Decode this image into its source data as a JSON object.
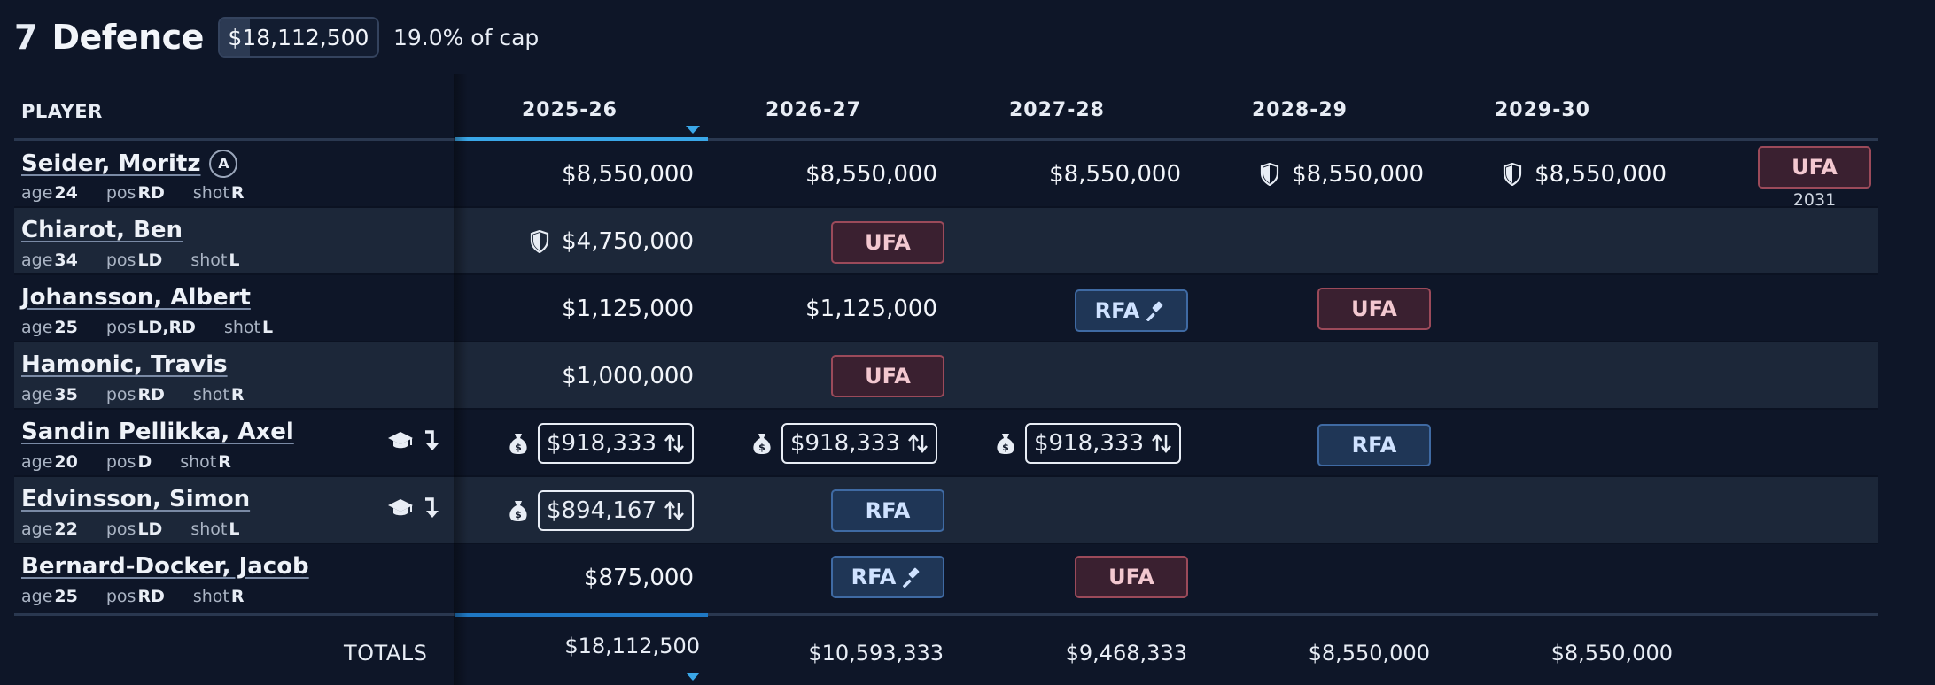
{
  "section": {
    "count": "7",
    "title": "Defence",
    "cap_hit": "$18,112,500",
    "cap_pct_text": "19.0% of cap",
    "cap_fill_fraction": 0.19
  },
  "columns": {
    "player": "PLAYER",
    "seasons": [
      "2025-26",
      "2026-27",
      "2027-28",
      "2028-29",
      "2029-30"
    ]
  },
  "meta_labels": {
    "age": "age",
    "pos": "pos",
    "shot": "shot"
  },
  "players": [
    {
      "name": "Seider, Moritz",
      "badge": "A",
      "age": "24",
      "pos": "RD",
      "shot": "R",
      "cells": [
        "$8,550,000",
        "$8,550,000",
        "$8,550,000",
        "$8,550,000",
        "$8,550,000"
      ],
      "tag": "UFA",
      "tag_year": "2031"
    },
    {
      "name": "Chiarot, Ben",
      "age": "34",
      "pos": "LD",
      "shot": "L",
      "cells": [
        "$4,750,000"
      ],
      "tag": "UFA"
    },
    {
      "name": "Johansson, Albert",
      "age": "25",
      "pos": "LD,RD",
      "shot": "L",
      "cells": [
        "$1,125,000",
        "$1,125,000"
      ],
      "tag1": "RFA",
      "tag2": "UFA"
    },
    {
      "name": "Hamonic, Travis",
      "age": "35",
      "pos": "RD",
      "shot": "R",
      "cells": [
        "$1,000,000"
      ],
      "tag": "UFA"
    },
    {
      "name": "Sandin Pellikka, Axel",
      "age": "20",
      "pos": "D",
      "shot": "R",
      "cells": [
        "$918,333",
        "$918,333",
        "$918,333"
      ],
      "tag": "RFA"
    },
    {
      "name": "Edvinsson, Simon",
      "age": "22",
      "pos": "LD",
      "shot": "L",
      "cells": [
        "$894,167"
      ],
      "tag": "RFA"
    },
    {
      "name": "Bernard-Docker, Jacob",
      "age": "25",
      "pos": "RD",
      "shot": "R",
      "cells": [
        "$875,000"
      ],
      "tag1": "RFA",
      "tag2": "UFA"
    }
  ],
  "totals": {
    "label": "TOTALS",
    "values": [
      "$18,112,500",
      "$10,593,333",
      "$9,468,333",
      "$8,550,000",
      "$8,550,000"
    ]
  },
  "colors": {
    "accent": "#3aa7e8",
    "ufa": "#9b4a5a",
    "rfa": "#3f6aa3"
  }
}
